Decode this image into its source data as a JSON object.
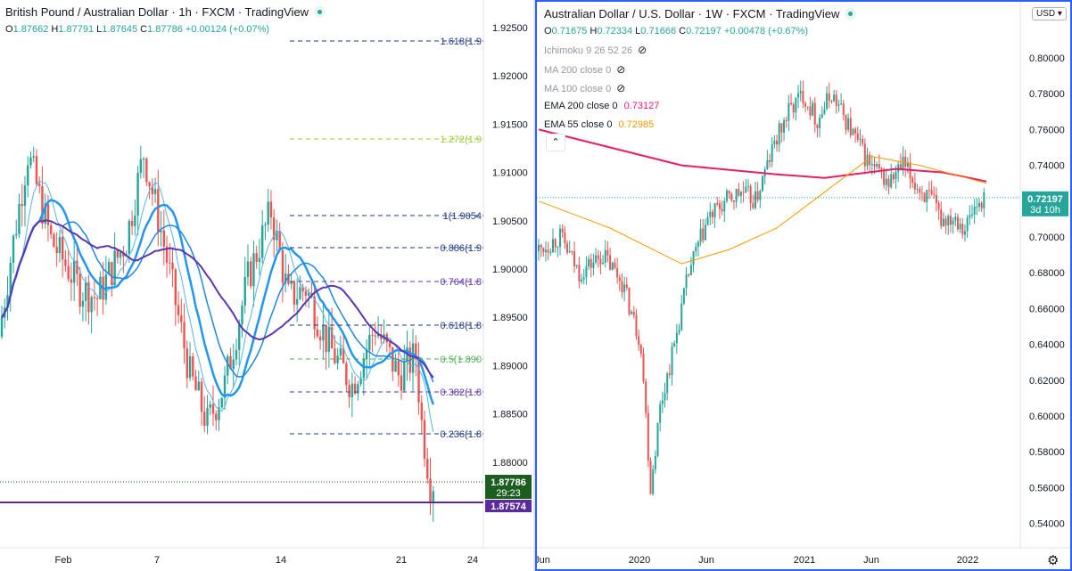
{
  "left_chart": {
    "title": "British Pound / Australian Dollar · 1h · FXCM · TradingView",
    "ohlc": {
      "o": "1.87662",
      "h": "1.87791",
      "l": "1.87645",
      "c": "1.87786",
      "chg": "+0.00124 (+0.07%)"
    },
    "price_labels": [
      "1.92500",
      "1.92000",
      "1.91500",
      "1.91000",
      "1.90500",
      "1.90000",
      "1.89500",
      "1.89000",
      "1.88500",
      "1.88000"
    ],
    "current_price": "1.87786",
    "countdown": "29:23",
    "support_price": "1.87574",
    "time_labels": [
      "Feb",
      "7",
      "14",
      "21",
      "24"
    ],
    "fib_labels": [
      "1.618(1.9",
      "1.272(1.9",
      "1(1.9054",
      "0.886(1.9",
      "0.764(1.8",
      "0.618(1.8",
      "0.5(1.890",
      "0.382(1.8",
      "0.236(1.8"
    ],
    "colors": {
      "up": "#26a69a",
      "down": "#ef5350",
      "current": "#1b5e20",
      "support": "#5b2a9c"
    }
  },
  "right_chart": {
    "title": "Australian Dollar / U.S. Dollar · 1W · FXCM · TradingView",
    "ohlc": {
      "o": "0.71675",
      "h": "0.72334",
      "l": "0.71666",
      "c": "0.72197",
      "chg": "+0.00478 (+0.67%)"
    },
    "currency": "USD",
    "indicators": {
      "ichimoku": "Ichimoku 9 26 52 26",
      "ma200": "MA 200 close 0",
      "ma100": "MA 100 close 0",
      "ema200": "EMA 200 close 0",
      "ema200_value": "0.73127",
      "ema55": "EMA 55 close 0",
      "ema55_value": "0.72985"
    },
    "price_labels": [
      "0.80000",
      "0.78000",
      "0.76000",
      "0.74000",
      "0.72000",
      "0.70000",
      "0.68000",
      "0.66000",
      "0.64000",
      "0.62000",
      "0.60000",
      "0.58000",
      "0.56000",
      "0.54000"
    ],
    "current_price": "0.72197",
    "countdown": "3d 10h",
    "time_labels": [
      "Jun",
      "2020",
      "Jun",
      "2021",
      "Jun",
      "2022"
    ],
    "colors": {
      "ema200": "#e91e63",
      "ema55": "#ff9800",
      "current": "#26a69a"
    }
  },
  "icons": {
    "settings": "gear-icon",
    "collapse": "chevron-up-icon",
    "hidden": "eye-crossed-icon"
  }
}
